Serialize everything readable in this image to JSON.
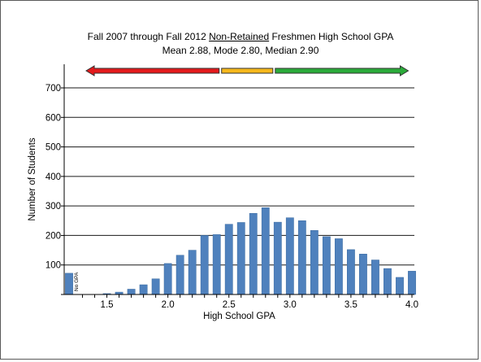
{
  "chart_data": {
    "type": "bar",
    "title": "Fall 2007 through Fall 2012 Non-Retained Freshmen High School GPA",
    "title_parts": {
      "before": "Fall 2007 through Fall 2012 ",
      "underlined": "Non-Retained",
      "after": " Freshmen High School GPA"
    },
    "subtitle": "Mean 2.88,  Mode 2.80,  Median 2.90",
    "xlabel": "High School GPA",
    "ylabel": "Number of Students",
    "ylim": [
      0,
      780
    ],
    "yticks": [
      100,
      200,
      300,
      400,
      500,
      600,
      700
    ],
    "xlim": [
      1.15,
      4.02
    ],
    "xticks": [
      "1.5",
      "2.0",
      "2.5",
      "3.0",
      "3.5",
      "4.0"
    ],
    "grid": "horizontal",
    "bar_color": "#4f81bd",
    "no_gpa_bar": {
      "label": "No GPA",
      "value": 72
    },
    "gpa": [
      1.5,
      1.6,
      1.7,
      1.8,
      1.9,
      2.0,
      2.1,
      2.2,
      2.3,
      2.4,
      2.5,
      2.6,
      2.7,
      2.8,
      2.9,
      3.0,
      3.1,
      3.2,
      3.3,
      3.4,
      3.5,
      3.6,
      3.7,
      3.8,
      3.9,
      4.0
    ],
    "values": [
      3,
      8,
      18,
      33,
      53,
      105,
      133,
      150,
      200,
      203,
      238,
      244,
      275,
      294,
      245,
      260,
      250,
      217,
      196,
      189,
      152,
      137,
      117,
      88,
      58,
      79
    ],
    "arrows": [
      {
        "color": "#e31a1c",
        "direction": "left",
        "from": 2.42,
        "to": 1.33
      },
      {
        "color": "#f6b81c",
        "direction": "none",
        "from": 2.44,
        "to": 2.86
      },
      {
        "color": "#2bab3a",
        "direction": "right",
        "from": 2.88,
        "to": 3.97
      }
    ]
  }
}
